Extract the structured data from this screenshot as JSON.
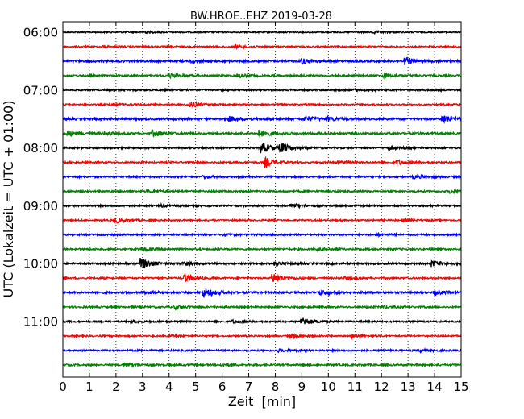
{
  "chart_data": {
    "type": "line",
    "title": "BW.HROE..EHZ 2019-03-28",
    "xlabel": "Zeit  [min]",
    "ylabel": "UTC (Lokalzeit = UTC + 01:00)",
    "xlim": [
      0,
      15
    ],
    "x_ticks": [
      "0",
      "1",
      "2",
      "3",
      "4",
      "5",
      "6",
      "7",
      "8",
      "9",
      "10",
      "11",
      "12",
      "13",
      "14",
      "15"
    ],
    "y_ticks": [
      {
        "label": "06:00",
        "trace": 0
      },
      {
        "label": "07:00",
        "trace": 4
      },
      {
        "label": "08:00",
        "trace": 8
      },
      {
        "label": "09:00",
        "trace": 12
      },
      {
        "label": "10:00",
        "trace": 16
      },
      {
        "label": "11:00",
        "trace": 20
      }
    ],
    "trace_interval_min": 15,
    "trace_colors": [
      "#000000",
      "#ff0000",
      "#0000ff",
      "#008000"
    ],
    "grid": "vertical dotted lines at each minute",
    "traces": [
      {
        "start": "06:00",
        "noise": 0.8,
        "events": [
          [
            11.7,
            1.5
          ],
          [
            3.0,
            1.0
          ]
        ]
      },
      {
        "start": "06:15",
        "noise": 0.9,
        "events": [
          [
            6.5,
            1.6
          ],
          [
            1.5,
            1.1
          ]
        ]
      },
      {
        "start": "06:30",
        "noise": 1.2,
        "events": [
          [
            9.0,
            3.2
          ],
          [
            12.9,
            4.0
          ],
          [
            4.8,
            1.6
          ]
        ]
      },
      {
        "start": "06:45",
        "noise": 1.1,
        "events": [
          [
            4.0,
            2.6
          ],
          [
            6.6,
            2.0
          ],
          [
            12.1,
            2.6
          ]
        ]
      },
      {
        "start": "07:00",
        "noise": 1.0,
        "events": [
          [
            11.0,
            1.3
          ]
        ]
      },
      {
        "start": "07:15",
        "noise": 0.9,
        "events": [
          [
            4.8,
            3.2
          ],
          [
            1.8,
            1.2
          ]
        ]
      },
      {
        "start": "07:30",
        "noise": 1.3,
        "events": [
          [
            6.3,
            2.6
          ],
          [
            9.1,
            3.2
          ],
          [
            14.3,
            5.5
          ],
          [
            10.0,
            1.8
          ]
        ]
      },
      {
        "start": "07:45",
        "noise": 1.2,
        "events": [
          [
            3.4,
            3.6
          ],
          [
            7.4,
            3.8
          ],
          [
            0.2,
            3.0
          ],
          [
            1.6,
            1.8
          ]
        ]
      },
      {
        "start": "08:00",
        "noise": 1.0,
        "events": [
          [
            7.5,
            6.5
          ],
          [
            8.2,
            5.5
          ],
          [
            12.3,
            1.8
          ]
        ]
      },
      {
        "start": "08:15",
        "noise": 1.0,
        "events": [
          [
            7.6,
            6.0
          ],
          [
            12.6,
            2.4
          ],
          [
            10.4,
            1.5
          ]
        ]
      },
      {
        "start": "08:30",
        "noise": 1.0,
        "events": [
          [
            13.2,
            2.0
          ],
          [
            5.3,
            1.4
          ]
        ]
      },
      {
        "start": "08:45",
        "noise": 1.1,
        "events": [
          [
            14.6,
            2.2
          ],
          [
            3.2,
            1.5
          ]
        ]
      },
      {
        "start": "09:00",
        "noise": 1.0,
        "events": [
          [
            8.6,
            2.4
          ],
          [
            3.7,
            1.5
          ]
        ]
      },
      {
        "start": "09:15",
        "noise": 0.9,
        "events": [
          [
            2.0,
            3.0
          ],
          [
            12.8,
            1.3
          ]
        ]
      },
      {
        "start": "09:30",
        "noise": 1.0,
        "events": [
          [
            11.8,
            1.4
          ],
          [
            6.0,
            1.2
          ]
        ]
      },
      {
        "start": "09:45",
        "noise": 1.1,
        "events": [
          [
            3.0,
            2.2
          ],
          [
            9.6,
            1.5
          ]
        ]
      },
      {
        "start": "10:00",
        "noise": 1.1,
        "events": [
          [
            2.95,
            6.5
          ],
          [
            4.5,
            2.4
          ],
          [
            13.9,
            3.4
          ],
          [
            8.0,
            2.2
          ]
        ]
      },
      {
        "start": "10:15",
        "noise": 1.0,
        "events": [
          [
            4.6,
            5.0
          ],
          [
            7.9,
            5.8
          ],
          [
            10.6,
            1.5
          ]
        ]
      },
      {
        "start": "10:30",
        "noise": 1.2,
        "events": [
          [
            5.3,
            5.5
          ],
          [
            9.7,
            3.0
          ],
          [
            14.0,
            2.4
          ],
          [
            3.0,
            1.4
          ]
        ]
      },
      {
        "start": "10:45",
        "noise": 1.1,
        "events": [
          [
            4.2,
            1.8
          ],
          [
            12.0,
            1.6
          ]
        ]
      },
      {
        "start": "11:00",
        "noise": 1.0,
        "events": [
          [
            9.0,
            5.0
          ],
          [
            6.4,
            1.6
          ],
          [
            2.6,
            1.3
          ]
        ]
      },
      {
        "start": "11:15",
        "noise": 0.9,
        "events": [
          [
            8.6,
            2.8
          ],
          [
            10.9,
            1.8
          ],
          [
            4.0,
            1.2
          ]
        ]
      },
      {
        "start": "11:30",
        "noise": 1.0,
        "events": [
          [
            8.1,
            1.6
          ],
          [
            13.5,
            1.4
          ]
        ]
      },
      {
        "start": "11:45",
        "noise": 1.1,
        "events": [
          [
            2.3,
            2.4
          ],
          [
            6.0,
            1.4
          ]
        ]
      }
    ]
  }
}
